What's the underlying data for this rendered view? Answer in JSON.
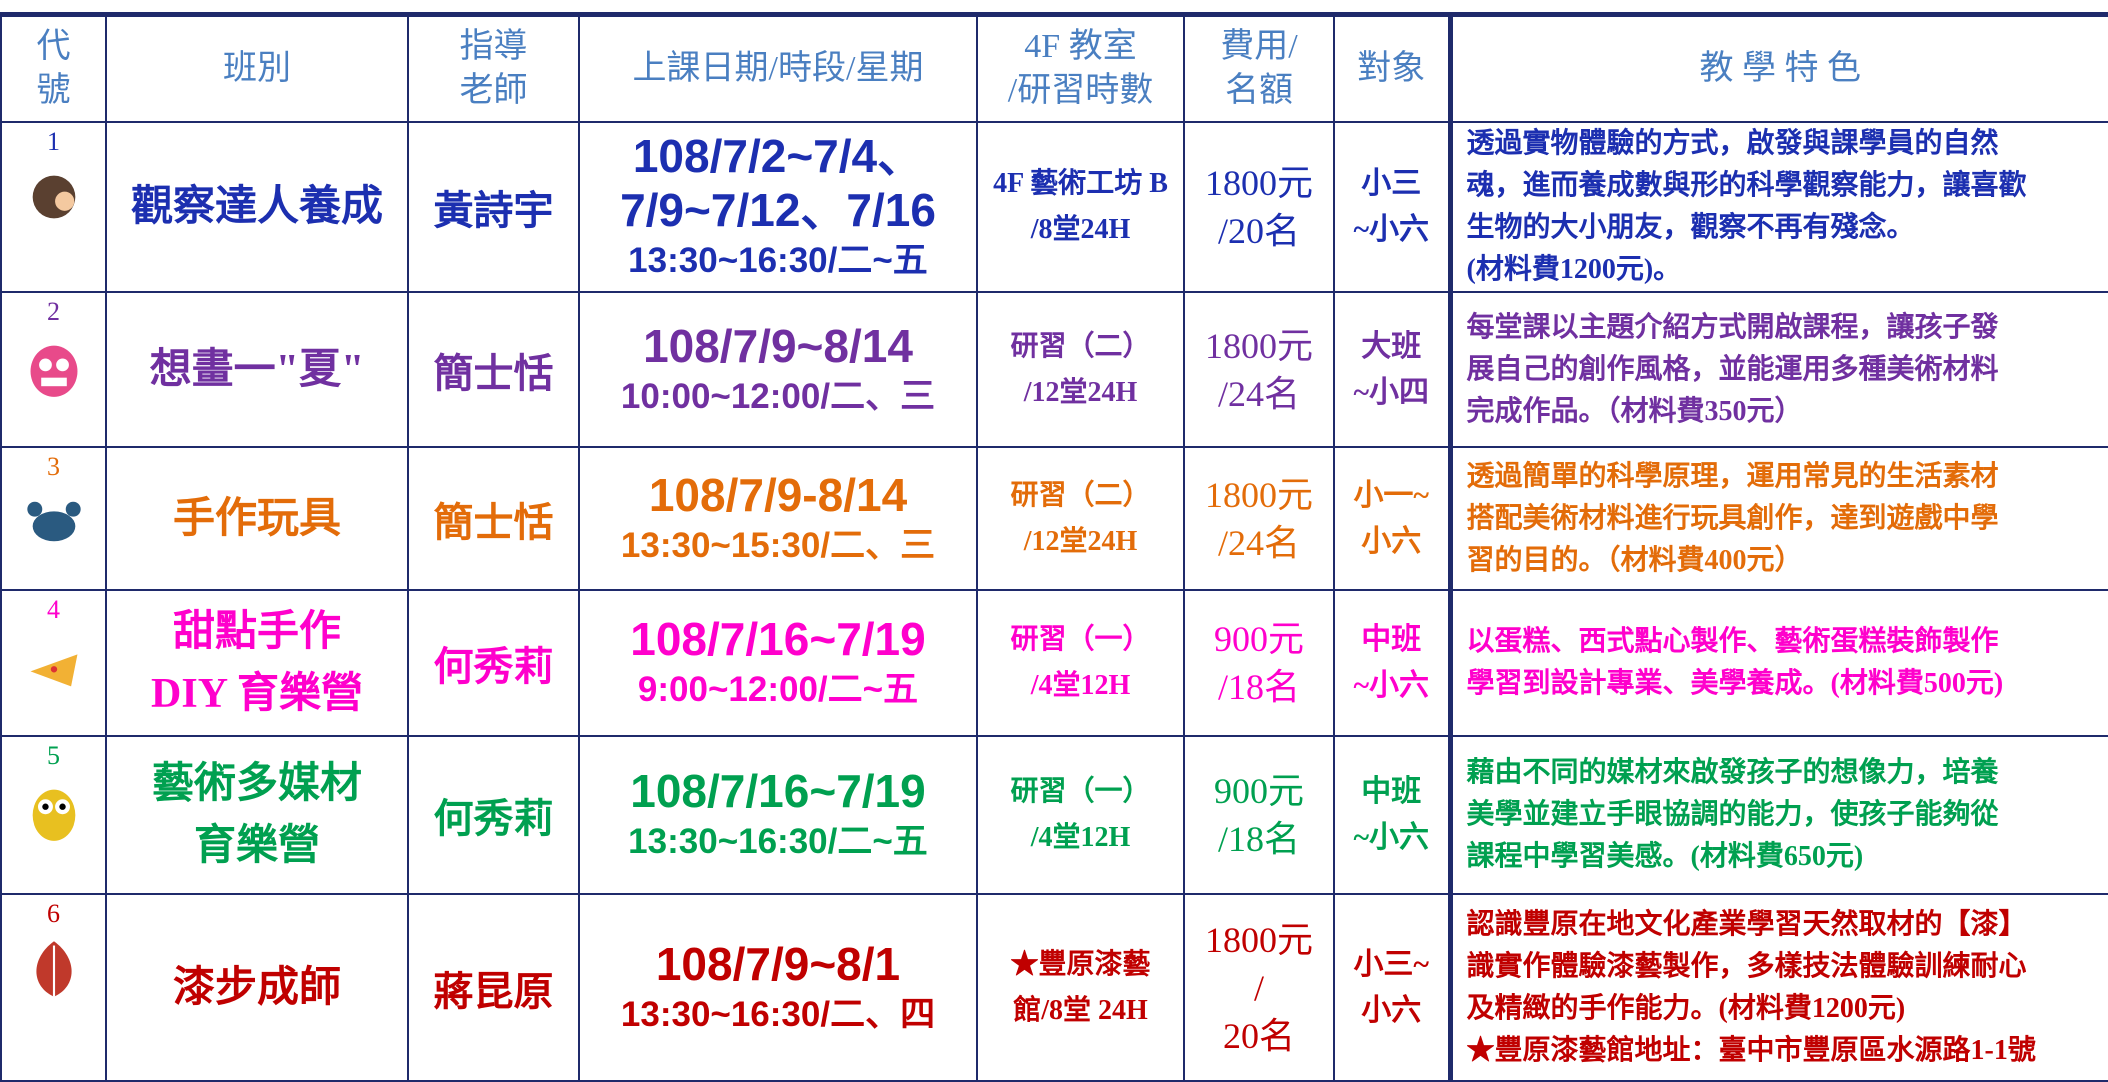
{
  "table": {
    "header": [
      [
        "代",
        "號"
      ],
      [
        "班別"
      ],
      [
        "指導",
        "老師"
      ],
      [
        "上課日期/時段/星期"
      ],
      [
        "4F 教室",
        "/研習時數"
      ],
      [
        "費用/",
        "名額"
      ],
      [
        "對象"
      ],
      [
        "教 學 特 色"
      ]
    ],
    "rows": [
      {
        "color": "#1c2fb0",
        "code": "1",
        "name": [
          "觀察達人養成"
        ],
        "teacher": "黃詩宇",
        "date": [
          "108/7/2~7/4、",
          "7/9~7/12、7/16",
          "13:30~16:30/二~五"
        ],
        "room": [
          "4F 藝術工坊 B",
          "/8堂24H"
        ],
        "fee": [
          "1800元",
          "/20名"
        ],
        "target": [
          "小三",
          "~小六"
        ],
        "desc": [
          "透過實物體驗的方式，啟發與課學員的自然",
          "魂，進而養成數與形的科學觀察能力，讓喜歡",
          "生物的大小朋友，觀察不再有殘念。",
          "(材料費1200元)。"
        ]
      },
      {
        "color": "#7030a0",
        "code": "2",
        "name": [
          "想畫一\"夏\""
        ],
        "teacher": "簡士恬",
        "date": [
          "108/7/9~8/14",
          "10:00~12:00/二、三"
        ],
        "room": [
          "研習（二）",
          "/12堂24H"
        ],
        "fee": [
          "1800元",
          "/24名"
        ],
        "target": [
          "大班",
          "~小四"
        ],
        "desc": [
          "每堂課以主題介紹方式開啟課程，讓孩子發",
          "展自己的創作風格，並能運用多種美術材料",
          "完成作品。（材料費350元）"
        ]
      },
      {
        "color": "#e36c09",
        "code": "3",
        "name": [
          "手作玩具"
        ],
        "teacher": "簡士恬",
        "date": [
          "108/7/9-8/14",
          "13:30~15:30/二、三"
        ],
        "room": [
          "研習（二）",
          "/12堂24H"
        ],
        "fee": [
          "1800元",
          "/24名"
        ],
        "target": [
          "小一~",
          "小六"
        ],
        "desc": [
          "透過簡單的科學原理，運用常見的生活素材",
          "搭配美術材料進行玩具創作，達到遊戲中學",
          "習的目的。（材料費400元）"
        ]
      },
      {
        "color": "#ff00cc",
        "code": "4",
        "name": [
          "甜點手作",
          "DIY 育樂營"
        ],
        "teacher": "何秀莉",
        "date": [
          "108/7/16~7/19",
          "9:00~12:00/二~五"
        ],
        "room": [
          "研習（一）",
          "/4堂12H"
        ],
        "fee": [
          "900元",
          "/18名"
        ],
        "target": [
          "中班",
          "~小六"
        ],
        "desc": [
          "以蛋糕、西式點心製作、藝術蛋糕裝飾製作",
          "學習到設計專業、美學養成。(材料費500元)"
        ]
      },
      {
        "color": "#00a050",
        "code": "5",
        "name": [
          "藝術多媒材",
          "育樂營"
        ],
        "teacher": "何秀莉",
        "date": [
          "108/7/16~7/19",
          "13:30~16:30/二~五"
        ],
        "room": [
          "研習（一）",
          "/4堂12H"
        ],
        "fee": [
          "900元",
          "/18名"
        ],
        "target": [
          "中班",
          "~小六"
        ],
        "desc": [
          "藉由不同的媒材來啟發孩子的想像力，培養",
          "美學並建立手眼協調的能力，使孩子能夠從",
          "課程中學習美感。(材料費650元)"
        ]
      },
      {
        "color": "#c00000",
        "code": "6",
        "name": [
          "漆步成師"
        ],
        "teacher": "蔣昆原",
        "date": [
          "108/7/9~8/1",
          "13:30~16:30/二、四"
        ],
        "room": [
          "★豐原漆藝",
          "館/8堂 24H"
        ],
        "fee": [
          "1800元",
          "/",
          "20名"
        ],
        "target": [
          "小三~",
          "小六"
        ],
        "desc": [
          "認識豐原在地文化產業學習天然取材的【漆】",
          "識實作體驗漆藝製作，多樣技法體驗訓練耐心",
          "及精緻的手作能力。(材料費1200元)",
          "★豐原漆藝館地址：臺中市豐原區水源路1-1號"
        ]
      }
    ]
  }
}
